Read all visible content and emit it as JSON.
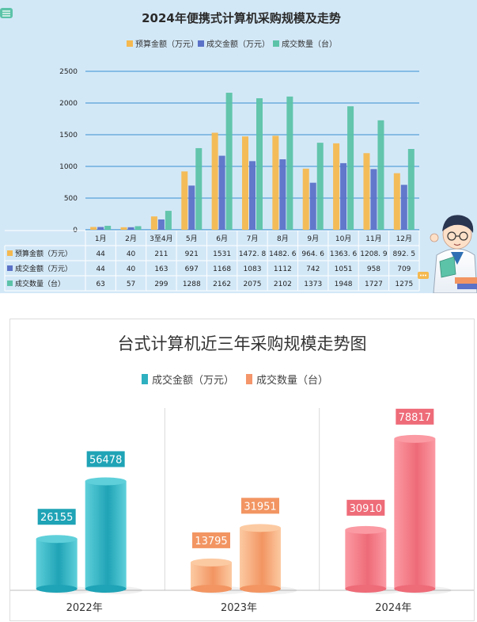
{
  "top_chart": {
    "chart_data": {
      "type": "bar",
      "title": "2024年便携式计算机采购规模及走势",
      "categories": [
        "1月",
        "2月",
        "3至4月",
        "5月",
        "6月",
        "7月",
        "8月",
        "9月",
        "10月",
        "11月",
        "12月"
      ],
      "series": [
        {
          "name": "预算金额（万元）",
          "color": "#f5b950",
          "values": [
            44,
            40,
            211,
            921,
            1531,
            1472.8,
            1482.6,
            964.6,
            1363.6,
            1208.9,
            892.5
          ],
          "labels": [
            "44",
            "40",
            "211",
            "921",
            "1531",
            "1472. 8",
            "1482. 6",
            "964. 6",
            "1363. 6",
            "1208. 9",
            "892. 5"
          ]
        },
        {
          "name": "成交金额（万元）",
          "color": "#5b72c8",
          "values": [
            44,
            40,
            163,
            697,
            1168,
            1083,
            1112,
            742,
            1051,
            958,
            709
          ],
          "labels": [
            "44",
            "40",
            "163",
            "697",
            "1168",
            "1083",
            "1112",
            "742",
            "1051",
            "958",
            "709"
          ]
        },
        {
          "name": "成交数量（台）",
          "color": "#5cc3a8",
          "values": [
            63,
            57,
            299,
            1288,
            2162,
            2075,
            2102,
            1373,
            1948,
            1727,
            1275
          ],
          "labels": [
            "63",
            "57",
            "299",
            "1288",
            "2162",
            "2075",
            "2102",
            "1373",
            "1948",
            "1727",
            "1275"
          ]
        }
      ],
      "yticks": [
        "0",
        "500",
        "1000",
        "1500",
        "2000",
        "2500"
      ],
      "ylim": [
        0,
        2500
      ],
      "grid": true,
      "legend": "top"
    }
  },
  "bottom_chart": {
    "chart_data": {
      "type": "bar",
      "title": "台式计算机近三年采购规模走势图",
      "categories": [
        "2022年",
        "2023年",
        "2024年"
      ],
      "series": [
        {
          "name": "成交金额（万元）",
          "values": [
            26155,
            13795,
            30910
          ]
        },
        {
          "name": "成交数量（台）",
          "values": [
            56478,
            31951,
            78817
          ]
        }
      ],
      "legend_colors": [
        "#2eb0c0",
        "#f4956a"
      ],
      "group_colors": [
        {
          "light": "#5fd0da",
          "dark": "#1fa3b6"
        },
        {
          "light": "#fccaa2",
          "dark": "#f29562"
        },
        {
          "light": "#fb9aa3",
          "dark": "#ee6b78"
        }
      ],
      "ylim": [
        0,
        80000
      ],
      "legend": "top"
    }
  }
}
